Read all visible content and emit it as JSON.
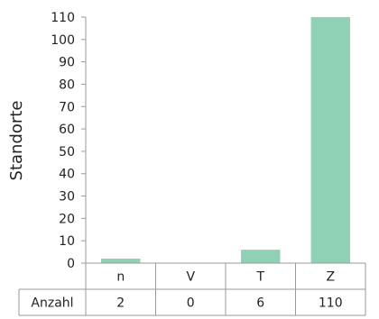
{
  "chart_data": {
    "type": "bar",
    "categories": [
      "n",
      "V",
      "T",
      "Z"
    ],
    "values": [
      2,
      0,
      6,
      110
    ],
    "ylabel": "Standorte",
    "ylim": [
      0,
      110
    ],
    "yticks": [
      0,
      10,
      20,
      30,
      40,
      50,
      60,
      70,
      80,
      90,
      100,
      110
    ],
    "table_row_label": "Anzahl",
    "bar_color": "#8fd1b5",
    "grid": false,
    "legend": "none"
  }
}
